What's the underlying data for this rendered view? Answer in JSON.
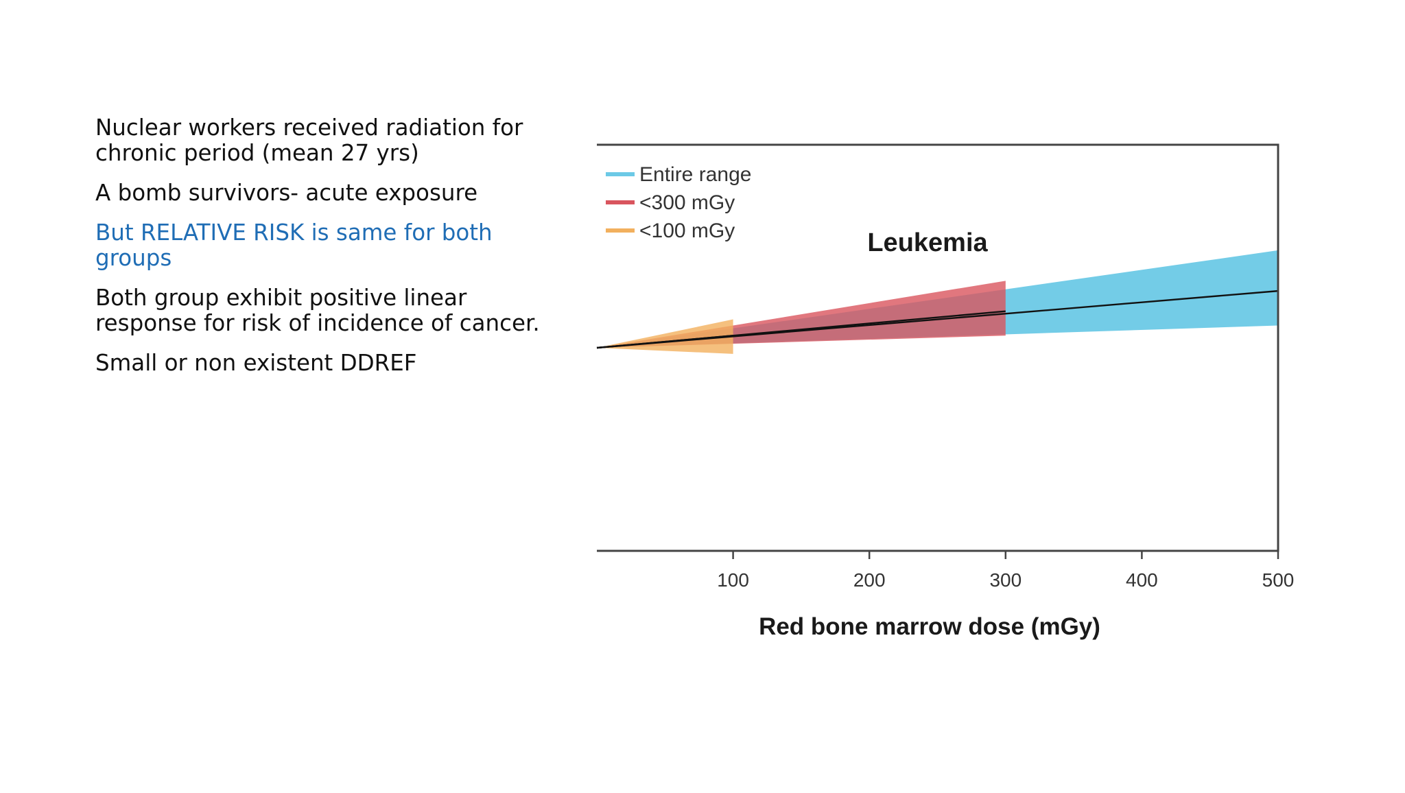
{
  "bullets": [
    {
      "text": "Nuclear workers received radiation for chronic period (mean 27 yrs)",
      "color": "#111111"
    },
    {
      "text": "A bomb survivors- acute exposure",
      "color": "#111111"
    },
    {
      "text": "But RELATIVE RISK is same for both groups",
      "color": "#1f6db5"
    },
    {
      "text": "Both group exhibit positive linear response for risk of incidence of cancer.",
      "color": "#111111"
    },
    {
      "text": "Small or non existent DDREF",
      "color": "#111111"
    }
  ],
  "chart_data": {
    "type": "area",
    "title": "Leukemia",
    "xlabel": "Red bone marrow dose (mGy)",
    "ylabel": "",
    "xlim": [
      0,
      500
    ],
    "ylim": [
      -1,
      1
    ],
    "x_ticks": [
      100,
      200,
      300,
      400,
      500
    ],
    "grid": false,
    "legend_position": "top-left",
    "series": [
      {
        "name": "Entire range",
        "color": "#6cc9e6",
        "x_max": 500,
        "lower_at_max": 0.11,
        "central_at_max": 0.28,
        "upper_at_max": 0.48
      },
      {
        "name": "<300 mGy",
        "color": "#d9555e",
        "x_max": 300,
        "lower_at_max": 0.06,
        "central_at_max": 0.18,
        "upper_at_max": 0.33
      },
      {
        "name": "<100 mGy",
        "color": "#f2b05e",
        "x_max": 100,
        "lower_at_max": -0.03,
        "central_at_max": 0.06,
        "upper_at_max": 0.14
      }
    ]
  }
}
